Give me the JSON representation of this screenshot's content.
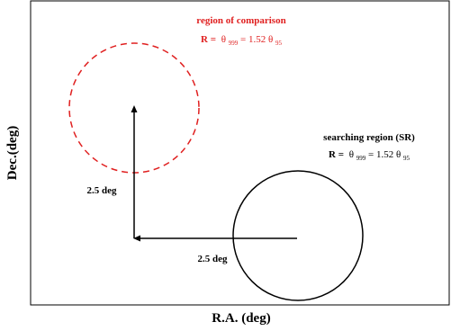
{
  "axes": {
    "xlabel": "R.A. (deg)",
    "ylabel": "Dec.(deg)"
  },
  "comparison_region": {
    "title": "region of comparison",
    "formula": {
      "lhs": "R =",
      "t1": "θ",
      "s1": "999",
      "mid": " = 1.52 ",
      "t2": "θ",
      "s2": "95"
    },
    "color": "#e02020",
    "style": "dashed"
  },
  "searching_region": {
    "title": "searching region (SR)",
    "formula": {
      "lhs": "R =",
      "t1": "θ",
      "s1": "999",
      "mid": " = 1.52 ",
      "t2": "θ",
      "s2": "95"
    },
    "color": "#000000",
    "style": "solid"
  },
  "arrows": {
    "vertical_label": "2.5 deg",
    "horizontal_label": "2.5 deg"
  }
}
